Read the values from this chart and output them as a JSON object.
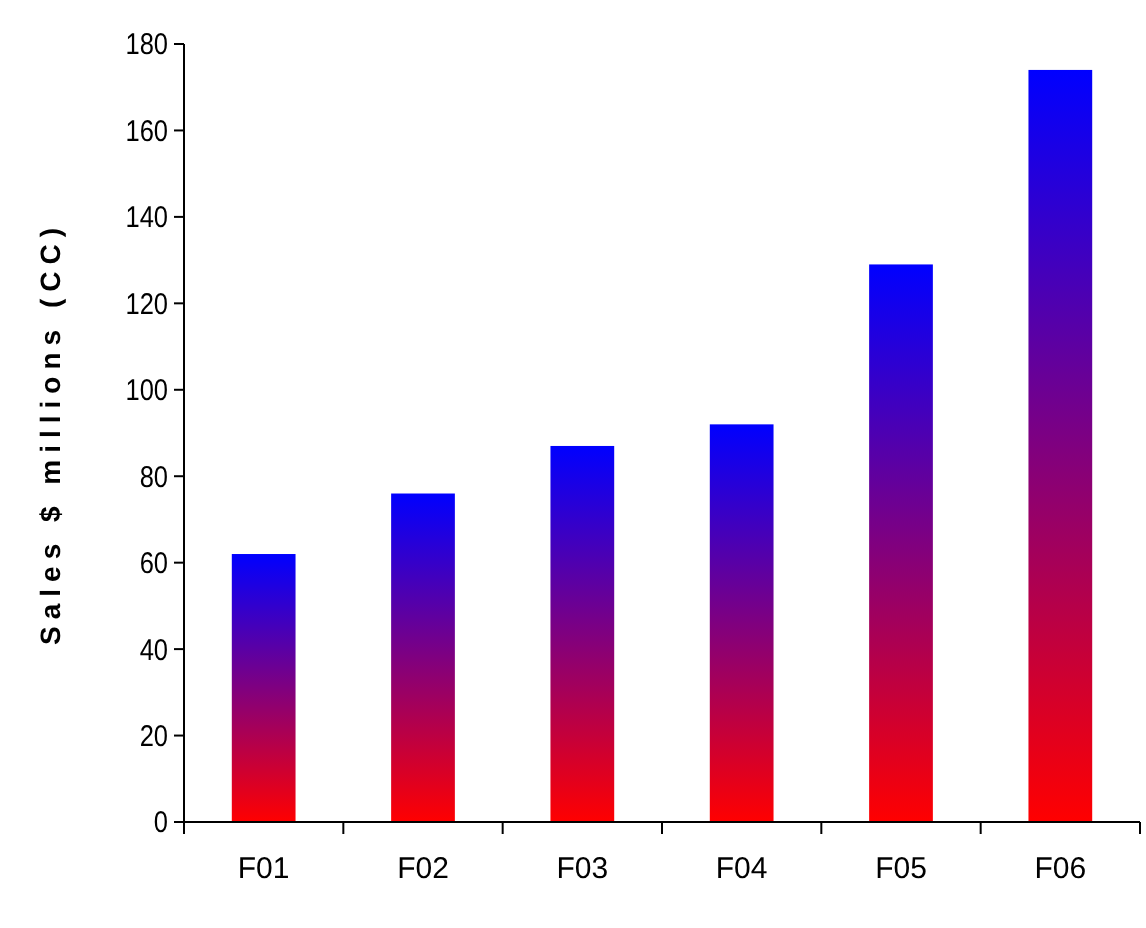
{
  "chart_data": {
    "type": "bar",
    "ylabel": "Sales $ millions (CC)",
    "categories": [
      "F01",
      "F02",
      "F03",
      "F04",
      "F05",
      "F06"
    ],
    "values": [
      62,
      76,
      87,
      92,
      129,
      174
    ],
    "color": "#0000ff",
    "ylim": [
      0,
      180
    ],
    "yticks": [
      0,
      20,
      40,
      60,
      80,
      100,
      120,
      140,
      160,
      180
    ],
    "grid": false
  }
}
